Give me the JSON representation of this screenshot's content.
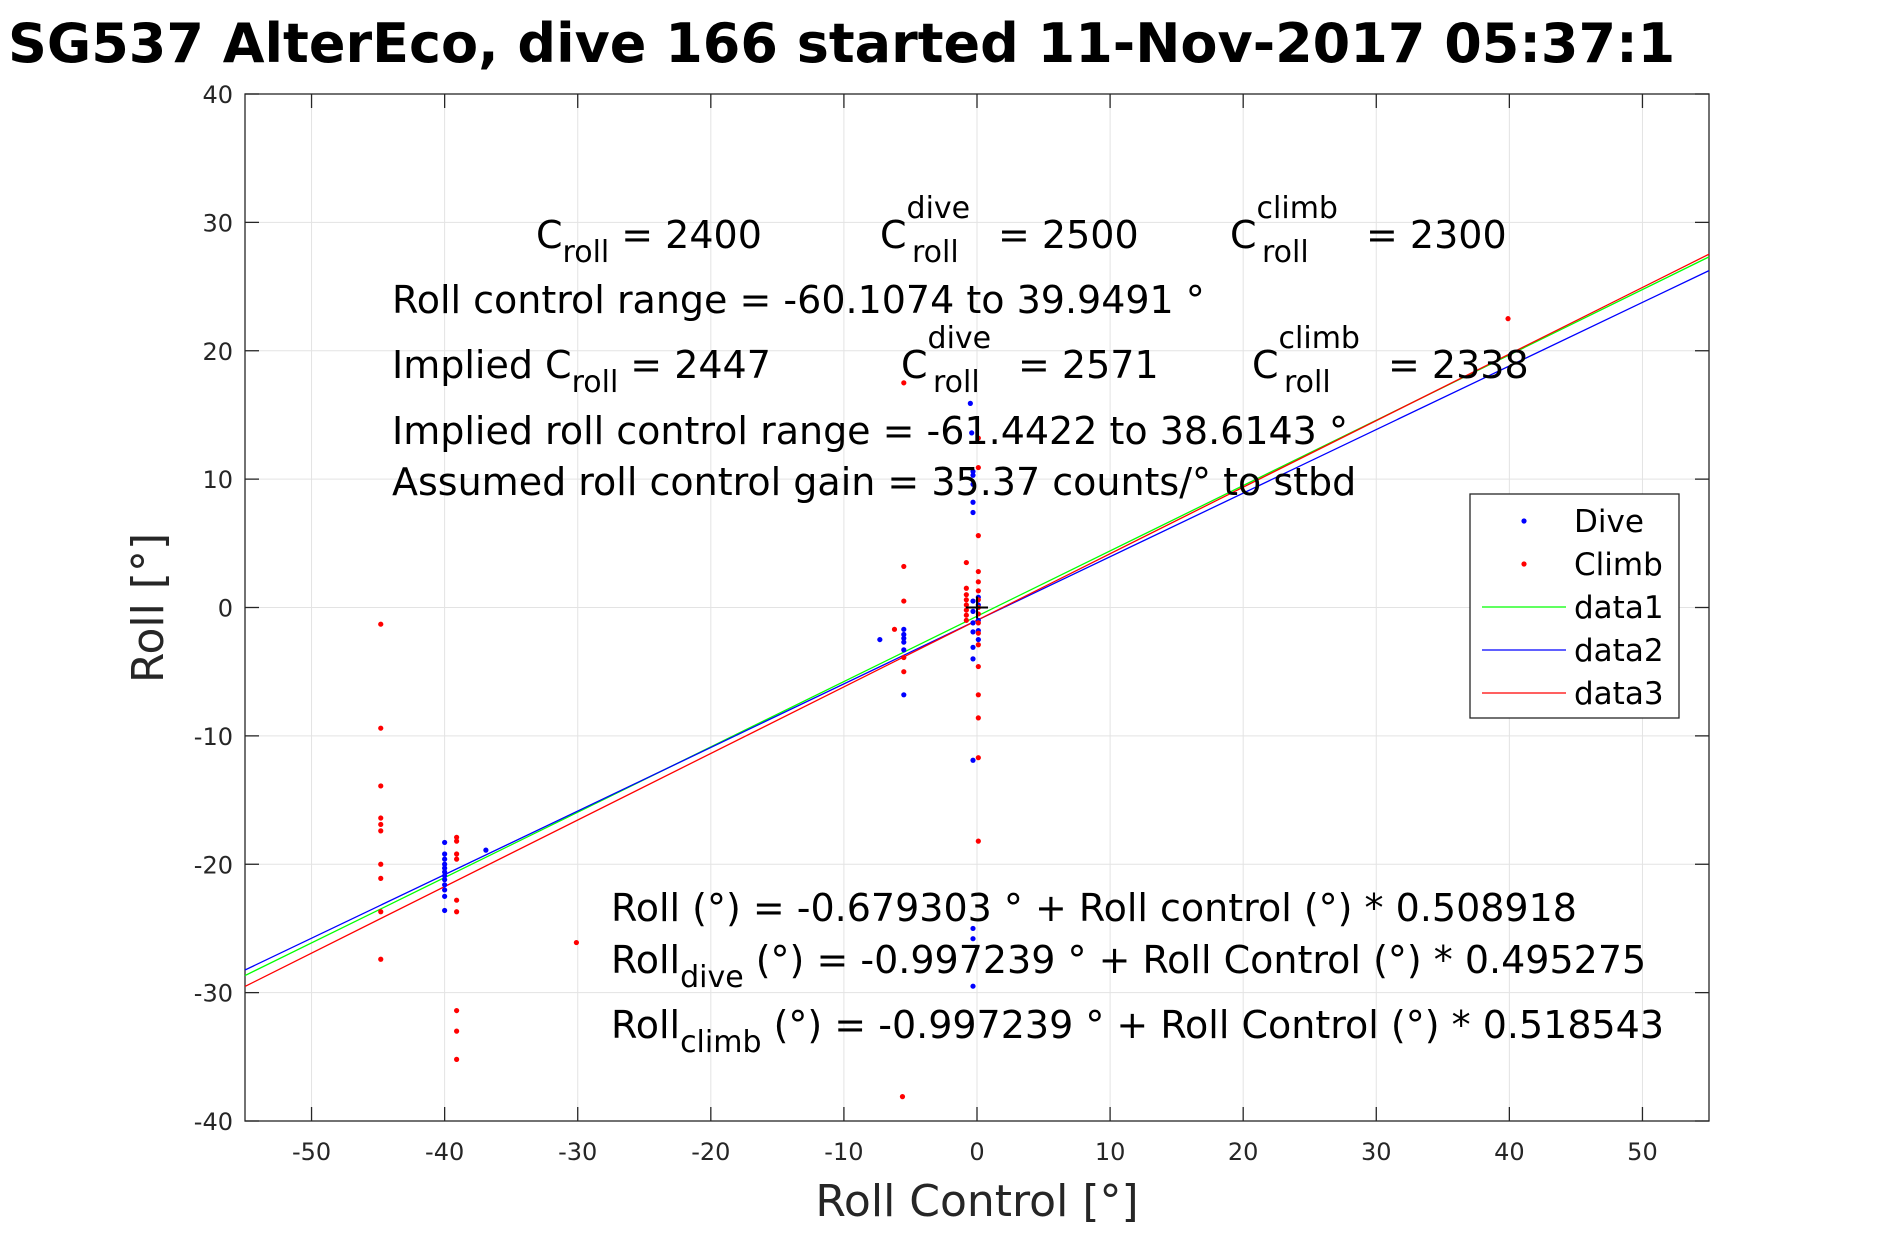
{
  "chart_data": {
    "type": "scatter",
    "title": "SG537 AlterEco, dive 166 started 11-Nov-2017 05:37:1",
    "xlabel": "Roll Control [°]",
    "ylabel": "Roll [°]",
    "xlim": [
      -55,
      55
    ],
    "ylim": [
      -40,
      40
    ],
    "xticks": [
      -50,
      -40,
      -30,
      -20,
      -10,
      0,
      10,
      20,
      30,
      40,
      50
    ],
    "yticks": [
      -40,
      -30,
      -20,
      -10,
      0,
      10,
      20,
      30,
      40
    ],
    "xtick_labels": [
      "-50",
      "-40",
      "-30",
      "-20",
      "-10",
      "0",
      "10",
      "20",
      "30",
      "40",
      "50"
    ],
    "ytick_labels": [
      "-40",
      "-30",
      "-20",
      "-10",
      "0",
      "10",
      "20",
      "30",
      "40"
    ],
    "grid": true,
    "legend_position": "right",
    "series": [
      {
        "name": "Dive",
        "kind": "points",
        "color": "#0000ff",
        "points": [
          [
            -40,
            -18.3
          ],
          [
            -40,
            -19.2
          ],
          [
            -40,
            -19.6
          ],
          [
            -40,
            -20.0
          ],
          [
            -40,
            -20.3
          ],
          [
            -40,
            -20.6
          ],
          [
            -40,
            -20.9
          ],
          [
            -40,
            -21.2
          ],
          [
            -40,
            -21.6
          ],
          [
            -40,
            -22.0
          ],
          [
            -40,
            -22.5
          ],
          [
            -40,
            -23.6
          ],
          [
            -36.9,
            -18.9
          ],
          [
            -7.3,
            -2.5
          ],
          [
            -5.5,
            -1.7
          ],
          [
            -5.5,
            -2.1
          ],
          [
            -5.5,
            -2.4
          ],
          [
            -5.5,
            -2.7
          ],
          [
            -5.5,
            -3.3
          ],
          [
            -5.5,
            -6.8
          ],
          [
            -0.5,
            15.9
          ],
          [
            -0.4,
            13.6
          ],
          [
            -0.3,
            10.6
          ],
          [
            -0.3,
            10.3
          ],
          [
            -0.3,
            9.6
          ],
          [
            -0.3,
            8.2
          ],
          [
            -0.3,
            7.4
          ],
          [
            -0.3,
            0.5
          ],
          [
            -0.3,
            -0.3
          ],
          [
            -0.3,
            -1.2
          ],
          [
            -0.3,
            -1.9
          ],
          [
            -0.3,
            -3.1
          ],
          [
            -0.3,
            -4.0
          ],
          [
            -0.3,
            -11.9
          ],
          [
            0.1,
            0.8
          ],
          [
            0.1,
            0.2
          ],
          [
            0.1,
            -1.0
          ],
          [
            0.1,
            -1.8
          ],
          [
            0.1,
            -2.5
          ],
          [
            -0.3,
            -25.0
          ],
          [
            -0.3,
            -25.8
          ],
          [
            -0.3,
            -29.5
          ]
        ]
      },
      {
        "name": "Climb",
        "kind": "points",
        "color": "#ff0000",
        "points": [
          [
            -44.8,
            -1.3
          ],
          [
            -44.8,
            -9.4
          ],
          [
            -44.8,
            -13.9
          ],
          [
            -44.8,
            -16.4
          ],
          [
            -44.8,
            -16.9
          ],
          [
            -44.8,
            -17.4
          ],
          [
            -44.8,
            -20.0
          ],
          [
            -44.8,
            -21.1
          ],
          [
            -44.8,
            -23.7
          ],
          [
            -44.8,
            -27.4
          ],
          [
            -39.1,
            -17.9
          ],
          [
            -39.1,
            -18.2
          ],
          [
            -39.1,
            -19.2
          ],
          [
            -39.1,
            -19.6
          ],
          [
            -39.1,
            -22.8
          ],
          [
            -39.1,
            -23.7
          ],
          [
            -39.1,
            -31.4
          ],
          [
            -39.1,
            -33.0
          ],
          [
            -39.1,
            -35.2
          ],
          [
            -30.1,
            -26.1
          ],
          [
            -6.2,
            -1.7
          ],
          [
            -5.5,
            17.5
          ],
          [
            -5.5,
            3.2
          ],
          [
            -5.5,
            0.5
          ],
          [
            -5.5,
            -3.9
          ],
          [
            -5.5,
            -5.0
          ],
          [
            -5.6,
            -38.1
          ],
          [
            -0.8,
            3.5
          ],
          [
            -0.8,
            1.5
          ],
          [
            -0.8,
            1.0
          ],
          [
            -0.8,
            0.6
          ],
          [
            -0.8,
            0.2
          ],
          [
            -0.8,
            -0.2
          ],
          [
            -0.8,
            -0.6
          ],
          [
            -0.8,
            -1.0
          ],
          [
            0.1,
            13.2
          ],
          [
            0.1,
            10.9
          ],
          [
            0.1,
            5.6
          ],
          [
            0.1,
            2.8
          ],
          [
            0.1,
            2.0
          ],
          [
            0.1,
            1.3
          ],
          [
            0.1,
            0.6
          ],
          [
            0.1,
            0.0
          ],
          [
            0.1,
            -0.5
          ],
          [
            0.1,
            -1.2
          ],
          [
            0.1,
            -2.0
          ],
          [
            0.1,
            -2.9
          ],
          [
            0.1,
            -4.6
          ],
          [
            0.1,
            -6.8
          ],
          [
            0.1,
            -8.6
          ],
          [
            0.1,
            -11.7
          ],
          [
            0.1,
            -18.2
          ],
          [
            39.9,
            22.5
          ]
        ]
      },
      {
        "name": "data1",
        "kind": "line",
        "color": "#00ff00",
        "intercept": -0.679303,
        "slope": 0.508918
      },
      {
        "name": "data2",
        "kind": "line",
        "color": "#0000ff",
        "intercept": -0.997239,
        "slope": 0.495275
      },
      {
        "name": "data3",
        "kind": "line",
        "color": "#ff0000",
        "intercept": -0.997239,
        "slope": 0.518543
      }
    ],
    "marker": {
      "symbol": "+",
      "color": "#000000",
      "x": 0,
      "y": 0
    },
    "annotations": {
      "c_roll": {
        "base": "C",
        "sub": "roll",
        "value": "= 2400"
      },
      "c_roll_dive": {
        "base": "C",
        "sup": "dive",
        "sub": "roll",
        "value": "= 2500"
      },
      "c_roll_climb": {
        "base": "C",
        "sup": "climb",
        "sub": "roll",
        "value": "= 2300"
      },
      "range_line": "Roll control range = -60.1074 to 39.9491 °",
      "implied_c_roll": {
        "prefix": "Implied C",
        "sub": "roll",
        "value": "= 2447"
      },
      "implied_c_dive": {
        "base": "C",
        "sup": "dive",
        "sub": "roll",
        "value": "= 2571"
      },
      "implied_c_climb": {
        "base": "C",
        "sup": "climb",
        "sub": "roll",
        "value": "= 2338"
      },
      "implied_range_line": "Implied roll control range = -61.4422 to 38.6143 °",
      "gain_line": "Assumed roll control gain = 35.37 counts/° to stbd",
      "fit_line": "Roll (°) = -0.679303 ° + Roll control (°) * 0.508918",
      "fit_dive": {
        "base": "Roll",
        "sub": "dive",
        "rest": " (°) = -0.997239 ° + Roll Control (°) * 0.495275"
      },
      "fit_climb": {
        "base": "Roll",
        "sub": "climb",
        "rest": " (°) = -0.997239 ° + Roll Control (°) * 0.518543"
      }
    }
  }
}
